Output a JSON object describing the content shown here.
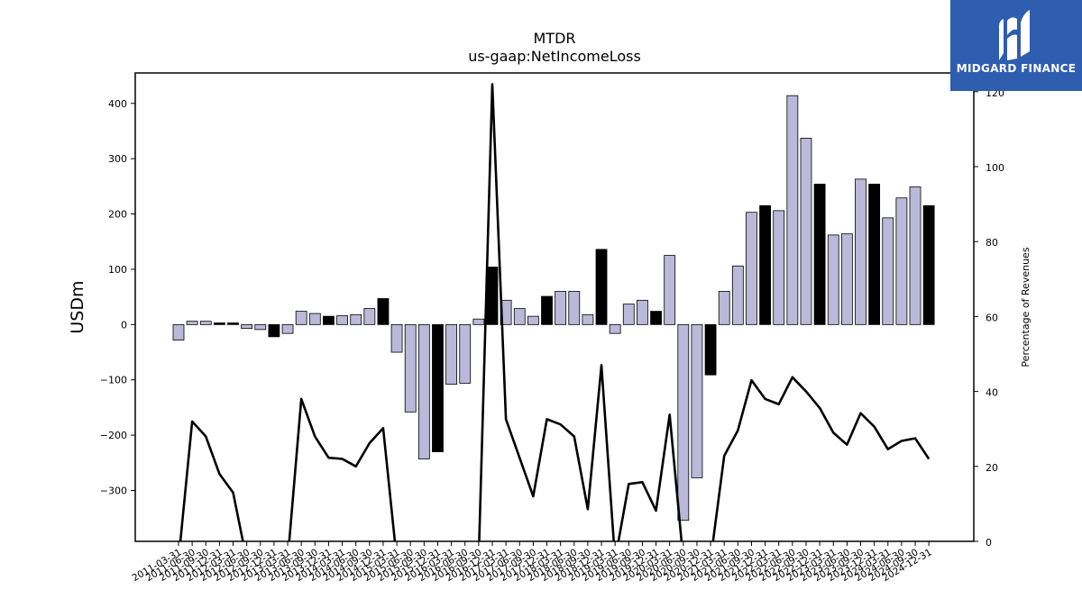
{
  "chart_data": {
    "type": "bar",
    "title": "MTDR",
    "subtitle": "us-gaap:NetIncomeLoss",
    "ylabel": "USDm",
    "y2label": "Percentage of Revenues",
    "ylim": [
      -392,
      455
    ],
    "y2lim": [
      0,
      125
    ],
    "yticks": [
      -300,
      -200,
      -100,
      0,
      100,
      200,
      300,
      400
    ],
    "y2ticks": [
      0,
      20,
      40,
      60,
      80,
      100,
      120
    ],
    "grid": false,
    "bar_fill": "#bcb8d9",
    "bar_highlight_fill": "#000000",
    "line_color": "#000000",
    "categories": [
      "2011-03-31",
      "2011-06-30",
      "2011-09-30",
      "2011-12-31",
      "2012-03-31",
      "2012-06-30",
      "2012-09-30",
      "2012-12-31",
      "2013-03-31",
      "2013-06-30",
      "2013-09-30",
      "2013-12-31",
      "2014-03-31",
      "2014-06-30",
      "2014-09-30",
      "2014-12-31",
      "2015-03-31",
      "2015-06-30",
      "2015-09-30",
      "2015-12-31",
      "2016-03-31",
      "2016-06-30",
      "2016-09-30",
      "2016-12-31",
      "2017-03-31",
      "2017-06-30",
      "2017-09-30",
      "2017-12-31",
      "2018-03-31",
      "2018-06-30",
      "2018-09-30",
      "2018-12-31",
      "2019-03-31",
      "2019-06-30",
      "2019-09-30",
      "2019-12-31",
      "2020-03-31",
      "2020-06-30",
      "2020-09-30",
      "2020-12-31",
      "2021-03-31",
      "2021-06-30",
      "2021-09-30",
      "2021-12-31",
      "2022-03-31",
      "2022-06-30",
      "2022-09-30",
      "2022-12-31",
      "2023-03-31",
      "2023-06-30",
      "2023-09-30",
      "2023-12-31",
      "2024-03-31",
      "2024-06-30",
      "2024-09-30",
      "2024-12-31"
    ],
    "series": [
      {
        "type": "bar",
        "values": [
          -28,
          6,
          6,
          3,
          3,
          -7,
          -9,
          -22,
          -16,
          24,
          20,
          15,
          16,
          18,
          29,
          47,
          -50,
          -158,
          -243,
          -230,
          -108,
          -106,
          10,
          104,
          44,
          29,
          15,
          51,
          60,
          60,
          18,
          136,
          -16,
          37,
          44,
          24,
          125,
          -354,
          -277,
          -91,
          60,
          106,
          203,
          215,
          206,
          414,
          337,
          254,
          162,
          164,
          263,
          254,
          193,
          229,
          249,
          215
        ],
        "highlight": [
          false,
          false,
          false,
          true,
          true,
          false,
          false,
          true,
          false,
          false,
          false,
          true,
          false,
          false,
          false,
          true,
          false,
          false,
          false,
          true,
          false,
          false,
          false,
          true,
          false,
          false,
          false,
          true,
          false,
          false,
          false,
          true,
          false,
          false,
          false,
          true,
          false,
          false,
          false,
          true,
          false,
          false,
          false,
          true,
          false,
          false,
          false,
          true,
          false,
          false,
          false,
          true,
          false,
          false,
          false,
          true
        ]
      },
      {
        "type": "line",
        "axis": "secondary",
        "values": [
          -5,
          32,
          28,
          18,
          13,
          -5,
          -5,
          -5,
          -5,
          38,
          28,
          22.3,
          22,
          20,
          26.2,
          30.2,
          -5,
          -5,
          -5,
          -5,
          -5,
          -5,
          -5,
          122,
          32.6,
          22.3,
          12,
          32.6,
          31.2,
          28,
          8.6,
          47,
          -5,
          15.3,
          15.8,
          8.2,
          33.8,
          -5,
          -5,
          -5,
          22.8,
          29.6,
          43,
          38,
          36.6,
          43.8,
          40,
          35.6,
          29,
          25.8,
          34.2,
          30.6,
          24.6,
          26.8,
          27.5,
          22
        ]
      }
    ]
  },
  "logo": {
    "text": "MIDGARD FINANCE"
  }
}
